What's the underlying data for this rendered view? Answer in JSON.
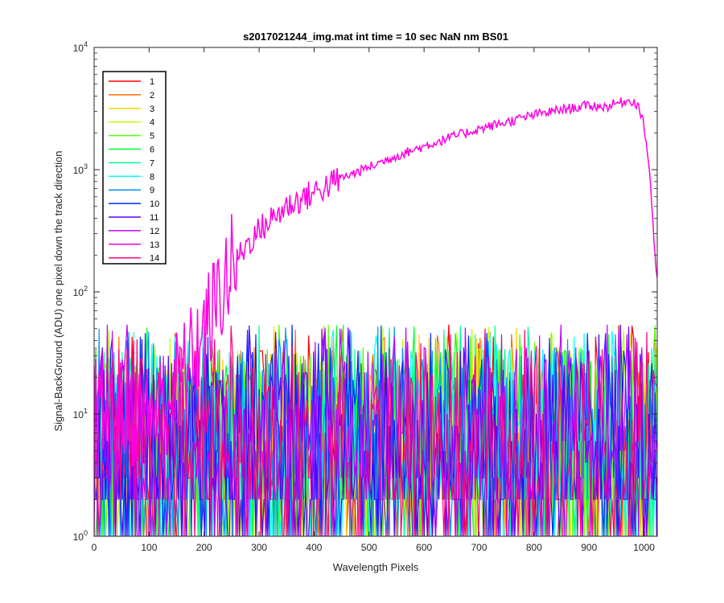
{
  "chart_data": {
    "type": "line",
    "title": "s2017021244_img.mat int time = 10 sec  NaN nm BS01",
    "xlabel": "Wavelength Pixels",
    "ylabel": "Signal-BackGround (ADU) one pixel down the track direction",
    "xlim": [
      0,
      1024
    ],
    "ylim": [
      1,
      10000
    ],
    "yscale": "log",
    "grid": false,
    "legend_location": "top-left",
    "x_ticks": [
      "0",
      "100",
      "200",
      "300",
      "400",
      "500",
      "600",
      "700",
      "800",
      "900",
      "1000"
    ],
    "y_ticks": [
      {
        "base": "10",
        "exp": "0"
      },
      {
        "base": "10",
        "exp": "1"
      },
      {
        "base": "10",
        "exp": "2"
      },
      {
        "base": "10",
        "exp": "3"
      },
      {
        "base": "10",
        "exp": "4"
      }
    ],
    "noise_series_description": "Series 1-12 and 14 fluctuate between about 1 and 50 ADU across all pixels",
    "series": [
      {
        "name": "1",
        "color": "#FF0000"
      },
      {
        "name": "2",
        "color": "#FF6A00"
      },
      {
        "name": "3",
        "color": "#FFD400"
      },
      {
        "name": "4",
        "color": "#BFFF00"
      },
      {
        "name": "5",
        "color": "#55FF00"
      },
      {
        "name": "6",
        "color": "#00FF2A"
      },
      {
        "name": "7",
        "color": "#00FF95"
      },
      {
        "name": "8",
        "color": "#00FFFF"
      },
      {
        "name": "9",
        "color": "#0095FF"
      },
      {
        "name": "10",
        "color": "#002AFF"
      },
      {
        "name": "11",
        "color": "#5500FF"
      },
      {
        "name": "12",
        "color": "#BF00FF"
      },
      {
        "name": "13",
        "color": "#FF00E0",
        "x": [
          0,
          100,
          130,
          150,
          170,
          200,
          230,
          250,
          280,
          300,
          330,
          350,
          400,
          450,
          500,
          550,
          600,
          650,
          700,
          750,
          800,
          850,
          900,
          930,
          950,
          970,
          980,
          990,
          1000,
          1010,
          1020,
          1024
        ],
        "values": [
          10,
          10,
          12,
          18,
          25,
          45,
          100,
          160,
          250,
          320,
          420,
          500,
          650,
          850,
          1050,
          1300,
          1550,
          1850,
          2150,
          2450,
          2800,
          3100,
          3350,
          3250,
          3500,
          3650,
          3650,
          3300,
          2300,
          1000,
          200,
          120
        ]
      },
      {
        "name": "14",
        "color": "#FF0080"
      }
    ]
  }
}
